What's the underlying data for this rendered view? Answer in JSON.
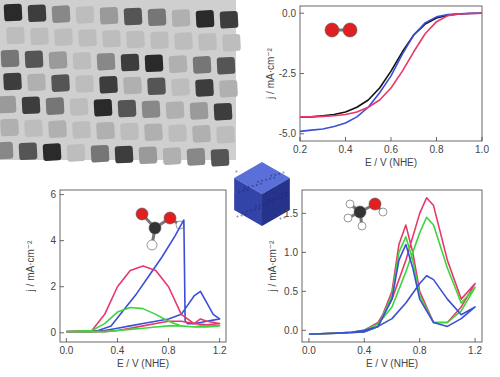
{
  "chart_data": [
    {
      "type": "line",
      "x_label": "E / V (NHE)",
      "y_label": "j / mA·cm⁻²",
      "xlim": [
        0.2,
        1.0
      ],
      "ylim": [
        -5.3,
        0.3
      ],
      "xticks": [
        0.2,
        0.4,
        0.6,
        0.8,
        {
          "value": 1.0,
          "label": "1.0"
        }
      ],
      "yticks": [
        {
          "value": 0,
          "label": "0.0"
        },
        -2.5,
        {
          "value": -5.0,
          "label": "-5.0"
        }
      ],
      "series": [
        {
          "color": "#111111",
          "x": [
            0.2,
            0.25,
            0.3,
            0.35,
            0.4,
            0.45,
            0.5,
            0.55,
            0.6,
            0.65,
            0.7,
            0.75,
            0.8,
            0.85,
            0.9,
            0.95,
            1.0
          ],
          "values": [
            -4.3,
            -4.3,
            -4.25,
            -4.2,
            -4.1,
            -3.9,
            -3.6,
            -3.1,
            -2.4,
            -1.6,
            -0.9,
            -0.45,
            -0.2,
            -0.08,
            -0.03,
            -0.01,
            0
          ]
        },
        {
          "color": "#3a4fd8",
          "x": [
            0.2,
            0.25,
            0.3,
            0.35,
            0.4,
            0.45,
            0.5,
            0.55,
            0.6,
            0.65,
            0.7,
            0.75,
            0.8,
            0.85,
            0.9,
            0.95,
            1.0
          ],
          "values": [
            -4.9,
            -4.85,
            -4.8,
            -4.7,
            -4.55,
            -4.3,
            -3.9,
            -3.3,
            -2.6,
            -1.7,
            -0.9,
            -0.4,
            -0.15,
            -0.05,
            -0.02,
            0,
            0
          ]
        },
        {
          "color": "#e8386a",
          "x": [
            0.2,
            0.25,
            0.3,
            0.35,
            0.4,
            0.45,
            0.5,
            0.55,
            0.6,
            0.65,
            0.7,
            0.75,
            0.8,
            0.85,
            0.9,
            0.95,
            1.0
          ],
          "values": [
            -4.3,
            -4.3,
            -4.28,
            -4.25,
            -4.2,
            -4.1,
            -3.9,
            -3.6,
            -3.1,
            -2.4,
            -1.6,
            -0.85,
            -0.35,
            -0.1,
            -0.03,
            -0.01,
            0
          ]
        }
      ]
    },
    {
      "type": "line",
      "x_label": "E / V (NHE)",
      "y_label": "j / mA·cm⁻²",
      "xlim": [
        -0.05,
        1.25
      ],
      "ylim": [
        -0.4,
        6.2
      ],
      "xticks": [
        {
          "value": 0,
          "label": "0.0"
        },
        0.4,
        0.8,
        1.2
      ],
      "yticks": [
        0,
        2,
        4,
        6
      ],
      "series": [
        {
          "color": "#3a4fd8",
          "x": [
            0.0,
            0.2,
            0.3,
            0.4,
            0.5,
            0.6,
            0.7,
            0.8,
            0.9,
            0.95,
            1.0,
            1.05,
            1.1,
            1.15,
            1.2,
            1.15,
            1.1,
            1.05,
            1.0,
            0.95,
            0.93,
            0.92,
            0.85,
            0.75,
            0.65,
            0.55,
            0.45,
            0.35,
            0.25,
            0.1,
            0.0
          ],
          "values": [
            0.05,
            0.05,
            0.1,
            0.2,
            0.3,
            0.4,
            0.5,
            0.6,
            0.8,
            1.2,
            1.6,
            1.8,
            1.3,
            0.8,
            0.6,
            0.55,
            0.5,
            0.45,
            0.4,
            0.4,
            0.5,
            4.9,
            4.2,
            3.3,
            2.5,
            1.7,
            1.0,
            0.3,
            0.1,
            0.05,
            0.05
          ]
        },
        {
          "color": "#e8386a",
          "x": [
            0.0,
            0.2,
            0.3,
            0.4,
            0.5,
            0.6,
            0.7,
            0.8,
            0.9,
            1.0,
            1.05,
            1.1,
            1.2,
            1.1,
            1.0,
            0.9,
            0.8,
            0.7,
            0.6,
            0.5,
            0.4,
            0.3,
            0.2,
            0.0
          ],
          "values": [
            0.05,
            0.1,
            0.8,
            2.0,
            2.7,
            2.9,
            2.7,
            2.0,
            0.8,
            0.4,
            0.6,
            0.5,
            0.4,
            0.35,
            0.4,
            0.5,
            0.5,
            0.4,
            0.3,
            0.2,
            0.1,
            0.05,
            0.05,
            0.05
          ]
        },
        {
          "color": "#3dd43d",
          "x": [
            0.0,
            0.2,
            0.3,
            0.4,
            0.5,
            0.6,
            0.7,
            0.8,
            0.9,
            1.0,
            1.05,
            1.1,
            1.2,
            1.1,
            1.0,
            0.9,
            0.8,
            0.7,
            0.6,
            0.5,
            0.4,
            0.3,
            0.2,
            0.0
          ],
          "values": [
            0.05,
            0.1,
            0.4,
            0.9,
            1.1,
            1.05,
            0.8,
            0.5,
            0.3,
            0.25,
            0.3,
            0.3,
            0.3,
            0.25,
            0.25,
            0.3,
            0.3,
            0.25,
            0.2,
            0.15,
            0.1,
            0.05,
            0.05,
            0.05
          ]
        }
      ]
    },
    {
      "type": "line",
      "x_label": "E / V (NHE)",
      "y_label": "j / mA·cm⁻²",
      "xlim": [
        -0.05,
        1.25
      ],
      "ylim": [
        -0.15,
        1.8
      ],
      "xticks": [
        {
          "value": 0,
          "label": "0.0"
        },
        0.4,
        0.8,
        1.2
      ],
      "yticks": [
        {
          "value": 0,
          "label": "0.0"
        },
        0.5,
        {
          "value": 1.0,
          "label": "1.0"
        },
        1.5
      ],
      "series": [
        {
          "color": "#e8386a",
          "x": [
            0.0,
            0.3,
            0.4,
            0.5,
            0.6,
            0.7,
            0.8,
            0.85,
            0.9,
            1.0,
            1.1,
            1.2,
            1.1,
            1.0,
            0.9,
            0.8,
            0.75,
            0.7,
            0.65,
            0.6,
            0.5,
            0.4,
            0.0
          ],
          "values": [
            -0.05,
            -0.03,
            0,
            0.1,
            0.4,
            0.9,
            1.5,
            1.7,
            1.6,
            0.9,
            0.4,
            0.6,
            0.3,
            0.1,
            0.1,
            0.5,
            1.0,
            1.35,
            1.1,
            0.5,
            0.05,
            -0.02,
            -0.05
          ]
        },
        {
          "color": "#3dd43d",
          "x": [
            0.0,
            0.3,
            0.4,
            0.5,
            0.6,
            0.7,
            0.8,
            0.85,
            0.9,
            1.0,
            1.1,
            1.2,
            1.1,
            1.0,
            0.9,
            0.8,
            0.75,
            0.7,
            0.65,
            0.6,
            0.5,
            0.4,
            0.0
          ],
          "values": [
            -0.05,
            -0.03,
            0,
            0.08,
            0.3,
            0.75,
            1.25,
            1.45,
            1.35,
            0.8,
            0.35,
            0.55,
            0.25,
            0.1,
            0.1,
            0.45,
            0.9,
            1.2,
            1.0,
            0.45,
            0.05,
            -0.02,
            -0.05
          ]
        },
        {
          "color": "#3a4fd8",
          "x": [
            0.0,
            0.3,
            0.4,
            0.5,
            0.6,
            0.7,
            0.8,
            0.85,
            0.9,
            1.0,
            1.1,
            1.2,
            1.1,
            1.0,
            0.9,
            0.8,
            0.75,
            0.7,
            0.65,
            0.6,
            0.5,
            0.4,
            0.0
          ],
          "values": [
            -0.05,
            -0.03,
            0,
            0.05,
            0.15,
            0.35,
            0.6,
            0.7,
            0.65,
            0.4,
            0.2,
            0.3,
            0.15,
            0.05,
            0.1,
            0.4,
            0.8,
            1.1,
            0.9,
            0.4,
            0.05,
            -0.02,
            -0.05
          ]
        }
      ]
    }
  ]
}
